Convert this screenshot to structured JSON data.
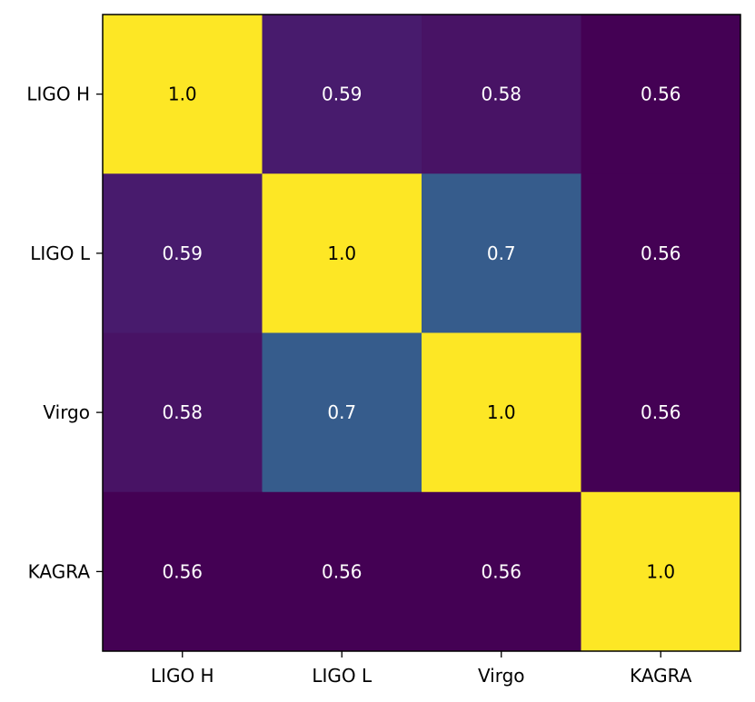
{
  "chart_data": {
    "type": "heatmap",
    "title": "",
    "xlabel": "",
    "ylabel": "",
    "x_categories": [
      "LIGO H",
      "LIGO L",
      "Virgo",
      "KAGRA"
    ],
    "y_categories": [
      "LIGO H",
      "LIGO L",
      "Virgo",
      "KAGRA"
    ],
    "values": [
      [
        1.0,
        0.59,
        0.58,
        0.56
      ],
      [
        0.59,
        1.0,
        0.7,
        0.56
      ],
      [
        0.58,
        0.7,
        1.0,
        0.56
      ],
      [
        0.56,
        0.56,
        0.56,
        1.0
      ]
    ],
    "labels": [
      [
        "1.0",
        "0.59",
        "0.58",
        "0.56"
      ],
      [
        "0.59",
        "1.0",
        "0.7",
        "0.56"
      ],
      [
        "0.58",
        "0.7",
        "1.0",
        "0.56"
      ],
      [
        "0.56",
        "0.56",
        "0.56",
        "1.0"
      ]
    ],
    "colormap": "viridis",
    "vmin": 0.56,
    "vmax": 1.0,
    "grid": false,
    "colors": {
      "low": "#440154",
      "high": "#fde725",
      "text_dark": "#000000",
      "text_light": "#ffffff",
      "frame": "#000000"
    }
  }
}
